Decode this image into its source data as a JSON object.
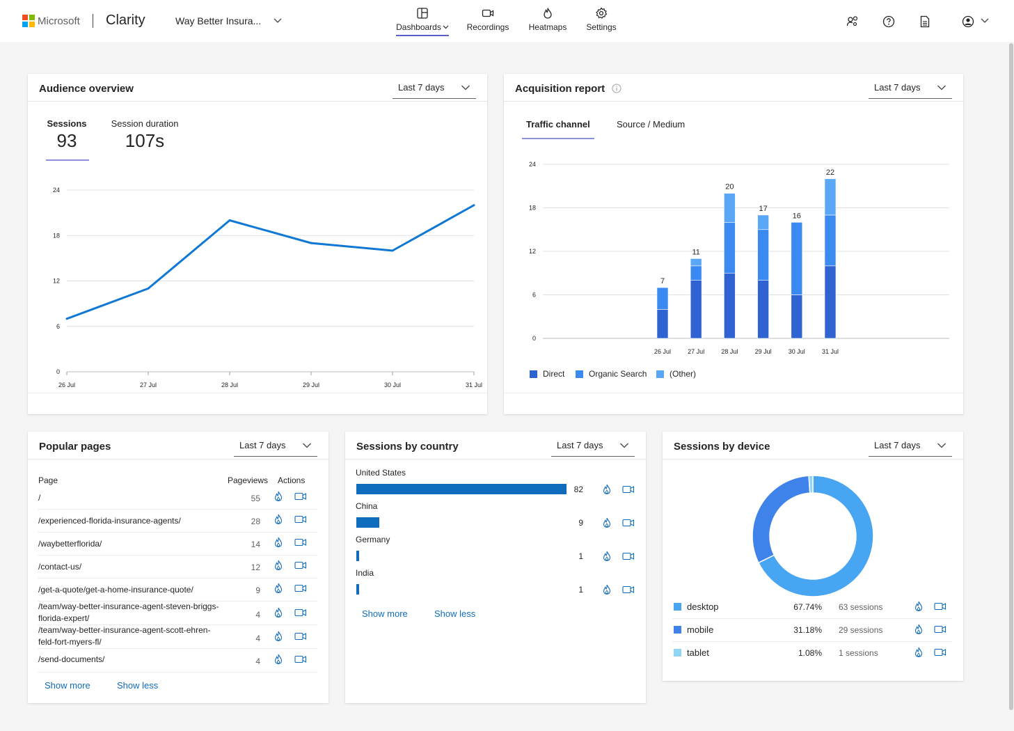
{
  "header": {
    "brand": "Microsoft",
    "product": "Clarity",
    "project": "Way Better Insura...",
    "nav": [
      {
        "label": "Dashboards",
        "icon": "dashboard-icon"
      },
      {
        "label": "Recordings",
        "icon": "video-icon"
      },
      {
        "label": "Heatmaps",
        "icon": "flame-icon"
      },
      {
        "label": "Settings",
        "icon": "gear-icon"
      }
    ],
    "colors": {
      "ms_red": "#f25022",
      "ms_green": "#7fba00",
      "ms_blue": "#00a4ef",
      "ms_yellow": "#ffb900",
      "accent": "#5b5fc7"
    }
  },
  "audience": {
    "title": "Audience overview",
    "range": "Last 7 days",
    "tabs": [
      {
        "label": "Sessions",
        "value": "93"
      },
      {
        "label": "Session duration",
        "value": "107s"
      }
    ]
  },
  "acquisition": {
    "title": "Acquisition report",
    "range": "Last 7 days",
    "tabs": [
      "Traffic channel",
      "Source / Medium"
    ],
    "legend": [
      "Direct",
      "Organic Search",
      "(Other)"
    ]
  },
  "chart_data": [
    {
      "type": "line",
      "x": [
        "26 Jul",
        "27 Jul",
        "28 Jul",
        "29 Jul",
        "30 Jul",
        "31 Jul"
      ],
      "series": [
        {
          "values": [
            7,
            11,
            20,
            17,
            16,
            22
          ]
        }
      ],
      "yticks": [
        0,
        6,
        12,
        18,
        24
      ],
      "ylim": [
        0,
        24
      ],
      "grid": true,
      "color": "#0f78d4"
    },
    {
      "type": "bar",
      "stacked": true,
      "categories": [
        "26 Jul",
        "27 Jul",
        "28 Jul",
        "29 Jul",
        "30 Jul",
        "31 Jul"
      ],
      "totals": [
        7,
        11,
        20,
        17,
        16,
        22
      ],
      "series": [
        {
          "name": "Direct",
          "values": [
            4,
            8,
            9,
            8,
            6,
            10
          ],
          "color": "#2f63d2"
        },
        {
          "name": "Organic Search",
          "values": [
            3,
            2,
            7,
            7,
            10,
            7
          ],
          "color": "#3a8af2"
        },
        {
          "name": "(Other)",
          "values": [
            0,
            1,
            4,
            2,
            0,
            5
          ],
          "color": "#5aa6f7"
        }
      ],
      "yticks": [
        0,
        6,
        12,
        18,
        24
      ],
      "ylim": [
        0,
        24
      ],
      "grid": true,
      "legend": "bottom-left"
    },
    {
      "type": "bar",
      "orientation": "horizontal",
      "categories": [
        "United States",
        "China",
        "Germany",
        "India"
      ],
      "values": [
        82,
        9,
        1,
        1
      ],
      "color": "#0f6cbd"
    },
    {
      "type": "pie",
      "donut": true,
      "categories": [
        "desktop",
        "mobile",
        "tablet"
      ],
      "values": [
        67.74,
        31.18,
        1.08
      ],
      "colors": [
        "#47a5f2",
        "#3f83ea",
        "#8fd6f5"
      ]
    }
  ],
  "popular_pages": {
    "title": "Popular pages",
    "range": "Last 7 days",
    "col_page": "Page",
    "col_views": "Pageviews",
    "col_actions": "Actions",
    "rows": [
      {
        "page": "/",
        "views": "55"
      },
      {
        "page": "/experienced-florida-insurance-agents/",
        "views": "28"
      },
      {
        "page": "/waybetterflorida/",
        "views": "14"
      },
      {
        "page": "/contact-us/",
        "views": "12"
      },
      {
        "page": "/get-a-quote/get-a-home-insurance-quote/",
        "views": "9"
      },
      {
        "page": "/team/way-better-insurance-agent-steven-briggs-florida-expert/",
        "views": "4"
      },
      {
        "page": "/team/way-better-insurance-agent-scott-ehren-feld-fort-myers-fl/",
        "views": "4"
      },
      {
        "page": "/send-documents/",
        "views": "4"
      }
    ],
    "show_more": "Show more",
    "show_less": "Show less"
  },
  "sessions_country": {
    "title": "Sessions by country",
    "range": "Last 7 days",
    "rows": [
      {
        "country": "United States",
        "count": "82"
      },
      {
        "country": "China",
        "count": "9"
      },
      {
        "country": "Germany",
        "count": "1"
      },
      {
        "country": "India",
        "count": "1"
      }
    ],
    "show_more": "Show more",
    "show_less": "Show less"
  },
  "sessions_device": {
    "title": "Sessions by device",
    "range": "Last 7 days",
    "rows": [
      {
        "device": "desktop",
        "pct": "67.74%",
        "sessions": "63 sessions"
      },
      {
        "device": "mobile",
        "pct": "31.18%",
        "sessions": "29 sessions"
      },
      {
        "device": "tablet",
        "pct": "1.08%",
        "sessions": "1 sessions"
      }
    ]
  }
}
